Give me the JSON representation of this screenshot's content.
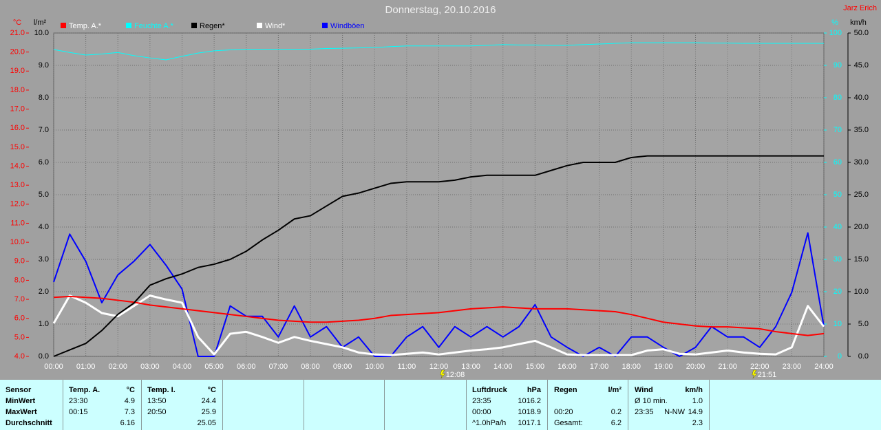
{
  "chart_data": {
    "type": "line",
    "title": "Donnerstag, 20.10.2016",
    "author": "Jarz Erich",
    "y_label": "°C",
    "y2_label": "l/m²",
    "y3_label": "%",
    "y4_label": "km/h",
    "x": [
      0,
      0.5,
      1,
      1.5,
      2,
      2.5,
      3,
      3.5,
      4,
      4.5,
      5,
      5.5,
      6,
      6.5,
      7,
      7.5,
      8,
      8.5,
      9,
      9.5,
      10,
      10.5,
      11,
      11.5,
      12,
      12.5,
      13,
      13.5,
      14,
      14.5,
      15,
      15.5,
      16,
      16.5,
      17,
      17.5,
      18,
      18.5,
      19,
      19.5,
      20,
      20.5,
      21,
      21.5,
      22,
      22.5,
      23,
      23.5,
      24
    ],
    "xlim": [
      0,
      24
    ],
    "xticks": [
      {
        "value": 0,
        "label": "00:00"
      },
      {
        "value": 1,
        "label": "01:00"
      },
      {
        "value": 2,
        "label": "02:00"
      },
      {
        "value": 3,
        "label": "03:00"
      },
      {
        "value": 4,
        "label": "04:00"
      },
      {
        "value": 5,
        "label": "05:00"
      },
      {
        "value": 6,
        "label": "06:00"
      },
      {
        "value": 7,
        "label": "07:00"
      },
      {
        "value": 8,
        "label": "08:00"
      },
      {
        "value": 9,
        "label": "09:00"
      },
      {
        "value": 10,
        "label": "10:00"
      },
      {
        "value": 11,
        "label": "11:00"
      },
      {
        "value": 12,
        "label": "12:00"
      },
      {
        "value": 13,
        "label": "13:00"
      },
      {
        "value": 14,
        "label": "14:00"
      },
      {
        "value": 15,
        "label": "15:00"
      },
      {
        "value": 16,
        "label": "16:00"
      },
      {
        "value": 17,
        "label": "17:00"
      },
      {
        "value": 18,
        "label": "18:00"
      },
      {
        "value": 19,
        "label": "19:00"
      },
      {
        "value": 20,
        "label": "20:00"
      },
      {
        "value": 21,
        "label": "21:00"
      },
      {
        "value": 22,
        "label": "22:00"
      },
      {
        "value": 23,
        "label": "23:00"
      },
      {
        "value": 24,
        "label": "24:00"
      }
    ],
    "ylim": [
      4,
      21
    ],
    "yticks": [
      {
        "value": 4,
        "label": "4.0"
      },
      {
        "value": 5,
        "label": "5.0"
      },
      {
        "value": 6,
        "label": "6.0"
      },
      {
        "value": 7,
        "label": "7.0"
      },
      {
        "value": 8,
        "label": "8.0"
      },
      {
        "value": 9,
        "label": "9.0"
      },
      {
        "value": 10,
        "label": "10.0"
      },
      {
        "value": 11,
        "label": "11.0"
      },
      {
        "value": 12,
        "label": "12.0"
      },
      {
        "value": 13,
        "label": "13.0"
      },
      {
        "value": 14,
        "label": "14.0"
      },
      {
        "value": 15,
        "label": "15.0"
      },
      {
        "value": 16,
        "label": "16.0"
      },
      {
        "value": 17,
        "label": "17.0"
      },
      {
        "value": 18,
        "label": "18.0"
      },
      {
        "value": 19,
        "label": "19.0"
      },
      {
        "value": 20,
        "label": "20.0"
      },
      {
        "value": 21,
        "label": "21.0"
      }
    ],
    "y2lim": [
      0,
      10
    ],
    "y2ticks": [
      {
        "value": 0,
        "label": "0.0"
      },
      {
        "value": 1,
        "label": "1.0"
      },
      {
        "value": 2,
        "label": "2.0"
      },
      {
        "value": 3,
        "label": "3.0"
      },
      {
        "value": 4,
        "label": "4.0"
      },
      {
        "value": 5,
        "label": "5.0"
      },
      {
        "value": 6,
        "label": "6.0"
      },
      {
        "value": 7,
        "label": "7.0"
      },
      {
        "value": 8,
        "label": "8.0"
      },
      {
        "value": 9,
        "label": "9.0"
      },
      {
        "value": 10,
        "label": "10.0"
      }
    ],
    "y3lim": [
      0,
      100
    ],
    "y3ticks": [
      0,
      10,
      20,
      30,
      40,
      50,
      60,
      70,
      80,
      90,
      100
    ],
    "y4lim": [
      0,
      50
    ],
    "y4ticks": [
      {
        "value": 0,
        "label": "0.0"
      },
      {
        "value": 5,
        "label": "5.0"
      },
      {
        "value": 10,
        "label": "10.0"
      },
      {
        "value": 15,
        "label": "15.0"
      },
      {
        "value": 20,
        "label": "20.0"
      },
      {
        "value": 25,
        "label": "25.0"
      },
      {
        "value": 30,
        "label": "30.0"
      },
      {
        "value": 35,
        "label": "35.0"
      },
      {
        "value": 40,
        "label": "40.0"
      },
      {
        "value": 45,
        "label": "45.0"
      },
      {
        "value": 50,
        "label": "50.0"
      }
    ],
    "grid": true,
    "series": [
      {
        "name": "Temp. A.*",
        "color": "#ff0000",
        "axis": "y",
        "width": 2,
        "values": [
          7.1,
          7.15,
          7.1,
          7.05,
          6.95,
          6.85,
          6.7,
          6.6,
          6.5,
          6.4,
          6.3,
          6.2,
          6.1,
          6.0,
          5.9,
          5.85,
          5.8,
          5.8,
          5.85,
          5.9,
          6.0,
          6.15,
          6.2,
          6.25,
          6.3,
          6.4,
          6.5,
          6.55,
          6.6,
          6.55,
          6.5,
          6.5,
          6.5,
          6.45,
          6.4,
          6.35,
          6.2,
          6.0,
          5.8,
          5.7,
          5.6,
          5.55,
          5.55,
          5.5,
          5.45,
          5.3,
          5.2,
          5.1,
          5.2
        ]
      },
      {
        "name": "Feuchte A.*",
        "color": "#00ffff",
        "axis": "y3",
        "width": 1,
        "values": [
          94.9,
          94,
          93.2,
          93.5,
          94,
          93,
          92.3,
          91.7,
          92.8,
          93.8,
          94.5,
          94.8,
          95,
          95,
          95,
          95,
          95,
          95.2,
          95.3,
          95.4,
          95.5,
          95.8,
          96,
          96,
          96,
          96,
          96,
          96.2,
          96.4,
          96.3,
          96.3,
          96.2,
          96.2,
          96.4,
          96.6,
          96.8,
          97,
          97,
          97,
          97,
          97,
          96.9,
          96.9,
          96.8,
          96.8,
          96.8,
          96.8,
          96.8,
          96.8
        ]
      },
      {
        "name": "Regen*",
        "color": "#000000",
        "axis": "y2",
        "width": 2,
        "values": [
          0,
          0.2,
          0.4,
          0.8,
          1.3,
          1.65,
          2.2,
          2.4,
          2.55,
          2.75,
          2.85,
          3.0,
          3.25,
          3.6,
          3.9,
          4.25,
          4.35,
          4.65,
          4.95,
          5.05,
          5.2,
          5.35,
          5.4,
          5.4,
          5.4,
          5.45,
          5.55,
          5.6,
          5.6,
          5.6,
          5.6,
          5.75,
          5.9,
          6.0,
          6.0,
          6.0,
          6.15,
          6.2,
          6.2,
          6.2,
          6.2,
          6.2,
          6.2,
          6.2,
          6.2,
          6.2,
          6.2,
          6.2,
          6.2
        ]
      },
      {
        "name": "Wind*",
        "color": "#ffffff",
        "axis": "y4",
        "width": 3,
        "values": [
          5.1,
          9.4,
          8.3,
          6.7,
          6.2,
          7.8,
          9.4,
          8.8,
          8.3,
          3.0,
          0.3,
          3.5,
          3.8,
          3.0,
          2.1,
          3.0,
          2.4,
          1.9,
          1.4,
          0.6,
          0.3,
          0.2,
          0.4,
          0.6,
          0.3,
          0.6,
          0.9,
          1.1,
          1.4,
          1.9,
          2.4,
          1.4,
          0.3,
          0.2,
          0.2,
          0.2,
          0.2,
          0.9,
          1.1,
          0.4,
          0.3,
          0.6,
          0.9,
          0.6,
          0.4,
          0.3,
          1.4,
          7.8,
          4.6
        ]
      },
      {
        "name": "Windböen",
        "color": "#0000ff",
        "axis": "y4",
        "width": 2,
        "values": [
          11.5,
          18.9,
          14.7,
          8.3,
          12.6,
          14.7,
          17.3,
          14.1,
          10.4,
          0,
          0,
          7.8,
          6.2,
          6.2,
          3.0,
          7.8,
          3.0,
          4.6,
          1.4,
          3.0,
          0,
          0,
          3.0,
          4.6,
          1.4,
          4.6,
          3.0,
          4.6,
          3.0,
          4.6,
          8.0,
          3.0,
          1.4,
          0,
          1.4,
          0,
          3.0,
          3.0,
          1.4,
          0,
          1.4,
          4.6,
          3.0,
          3.0,
          1.4,
          4.6,
          9.9,
          19.1,
          4.6
        ]
      }
    ],
    "annotations": [
      {
        "label": "12:08",
        "x": 12.133
      },
      {
        "label": "21:51",
        "x": 21.85
      }
    ]
  },
  "stats": {
    "panels": [
      {
        "header": [
          "Sensor"
        ],
        "rows": [
          [
            "MinWert"
          ],
          [
            "MaxWert"
          ],
          [
            "Durchschnitt"
          ]
        ]
      },
      {
        "header": [
          "Temp. A.",
          "°C"
        ],
        "rows": [
          [
            "23:30",
            "4.9"
          ],
          [
            "00:15",
            "7.3"
          ],
          [
            "6.16"
          ]
        ]
      },
      {
        "header": [
          "Temp. I.",
          "°C"
        ],
        "rows": [
          [
            "13:50",
            "24.4"
          ],
          [
            "20:50",
            "25.9"
          ],
          [
            "25.05"
          ]
        ]
      },
      {
        "header": [
          "Luftdruck",
          "hPa"
        ],
        "rows": [
          [
            "23:35",
            "1016.2"
          ],
          [
            "00:00",
            "1018.9"
          ],
          [
            "^1.0hPa/h",
            "1017.1"
          ]
        ]
      },
      {
        "header": [
          "Regen",
          "l/m²"
        ],
        "rows": [
          null,
          [
            "00:20",
            "0.2"
          ],
          [
            "Gesamt:",
            "6.2"
          ]
        ]
      },
      {
        "header": [
          "Wind",
          "km/h"
        ],
        "rows": [
          [
            "Ø 10 min.",
            "1.0"
          ],
          [
            "23:35",
            "N-NW",
            "14.9"
          ],
          [
            "2.3"
          ]
        ]
      }
    ]
  }
}
